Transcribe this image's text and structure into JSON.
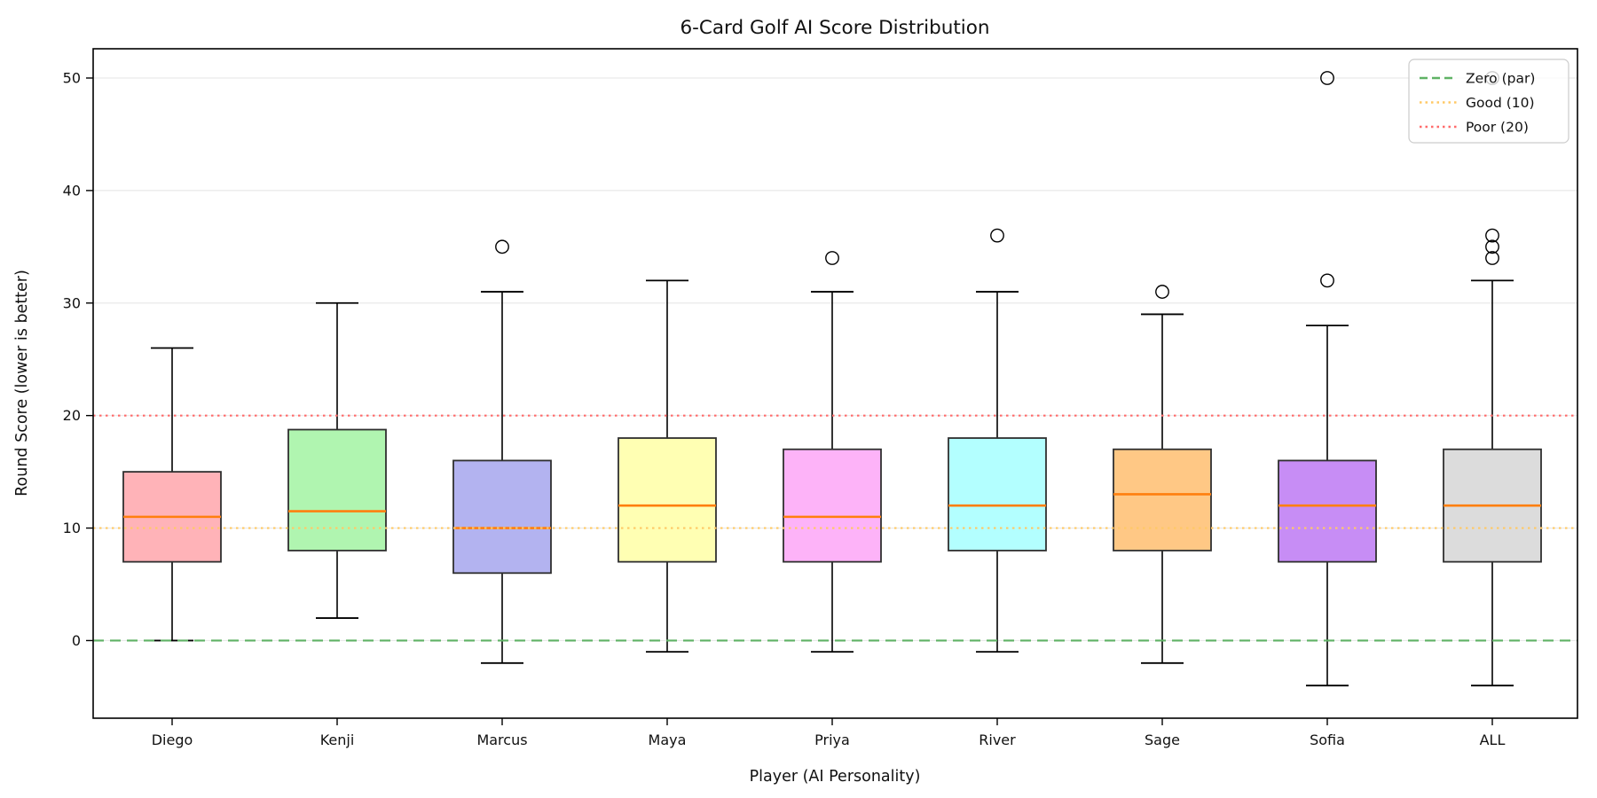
{
  "chart_data": {
    "type": "box",
    "title": "6-Card Golf AI Score Distribution",
    "xlabel": "Player (AI Personality)",
    "ylabel": "Round Score (lower is better)",
    "categories": [
      "Diego",
      "Kenji",
      "Marcus",
      "Maya",
      "Priya",
      "River",
      "Sage",
      "Sofia",
      "ALL"
    ],
    "yticks": [
      0,
      10,
      20,
      30,
      40,
      50
    ],
    "ylim": [
      -6.9,
      52.6
    ],
    "grid": "horizontal-light",
    "legend_position": "top-right",
    "colors": {
      "median": "#ff7f0e",
      "box_edge": "#2f2f2f",
      "whisker": "#000000",
      "gridline": "#e9e9e9",
      "zero_line": "#5fb265",
      "good_line": "#ffc966",
      "poor_line": "#ff6b6b"
    },
    "series": [
      {
        "name": "Diego",
        "fill": "#ffb3b8",
        "whisker_low": 0,
        "q1": 7,
        "median": 11,
        "q3": 15,
        "whisker_high": 26,
        "outliers": []
      },
      {
        "name": "Kenji",
        "fill": "#b0f5b0",
        "whisker_low": 2,
        "q1": 8,
        "median": 11.5,
        "q3": 18.75,
        "whisker_high": 30,
        "outliers": []
      },
      {
        "name": "Marcus",
        "fill": "#b3b3f0",
        "whisker_low": -2,
        "q1": 6,
        "median": 10,
        "q3": 16,
        "whisker_high": 31,
        "outliers": [
          35
        ]
      },
      {
        "name": "Maya",
        "fill": "#ffffb3",
        "whisker_low": -1,
        "q1": 7,
        "median": 12,
        "q3": 18,
        "whisker_high": 32,
        "outliers": []
      },
      {
        "name": "Priya",
        "fill": "#fdb3f8",
        "whisker_low": -1,
        "q1": 7,
        "median": 11,
        "q3": 17,
        "whisker_high": 31,
        "outliers": [
          34
        ]
      },
      {
        "name": "River",
        "fill": "#b3ffff",
        "whisker_low": -1,
        "q1": 8,
        "median": 12,
        "q3": 18,
        "whisker_high": 31,
        "outliers": [
          36
        ]
      },
      {
        "name": "Sage",
        "fill": "#ffc885",
        "whisker_low": -2,
        "q1": 8,
        "median": 13,
        "q3": 17,
        "whisker_high": 29,
        "outliers": [
          31
        ]
      },
      {
        "name": "Sofia",
        "fill": "#c78df5",
        "whisker_low": -4,
        "q1": 7,
        "median": 12,
        "q3": 16,
        "whisker_high": 28,
        "outliers": [
          32,
          50
        ]
      },
      {
        "name": "ALL",
        "fill": "#dcdcdc",
        "whisker_low": -4,
        "q1": 7,
        "median": 12,
        "q3": 17,
        "whisker_high": 32,
        "outliers": [
          34,
          35,
          36,
          50
        ]
      }
    ],
    "reference_lines": [
      {
        "label": "Zero (par)",
        "value": 0,
        "color": "#5fb265",
        "style": "dashed"
      },
      {
        "label": "Good (10)",
        "value": 10,
        "color": "#ffc966",
        "style": "dotted"
      },
      {
        "label": "Poor (20)",
        "value": 20,
        "color": "#ff6b6b",
        "style": "dotted"
      }
    ]
  }
}
